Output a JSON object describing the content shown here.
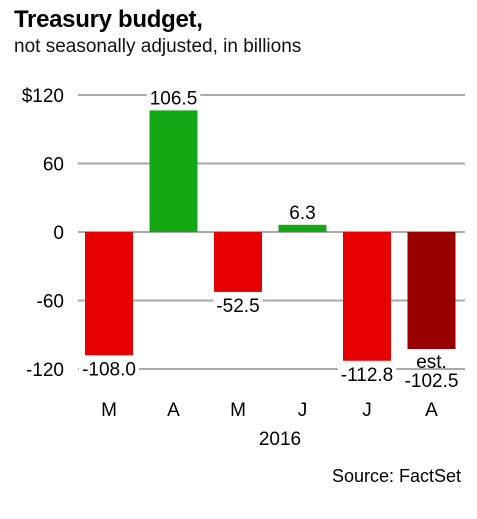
{
  "chart_data": {
    "type": "bar",
    "title": "Treasury budget,",
    "subtitle": "not seasonally adjusted, in billions",
    "source": "Source: FactSet",
    "categories": [
      "M",
      "A",
      "M",
      "J",
      "J",
      "A"
    ],
    "x_group_label": "2016",
    "values": [
      -108.0,
      106.5,
      -52.5,
      6.3,
      -112.8,
      -102.5
    ],
    "value_labels": [
      "-108.0",
      "106.5",
      "-52.5",
      "6.3",
      "-112.8",
      "-102.5"
    ],
    "estimate_prefix": "est.",
    "estimate_index": 5,
    "yticks": [
      120,
      60,
      0,
      -60,
      -120
    ],
    "ytick_labels": [
      "$120",
      "60",
      "0",
      "-60",
      "-120"
    ],
    "ylim": [
      -120,
      120
    ],
    "grid": true,
    "colors": {
      "negative": "#e60000",
      "positive": "#13a813",
      "estimate": "#990000",
      "grid": "#aaaaaa"
    }
  }
}
